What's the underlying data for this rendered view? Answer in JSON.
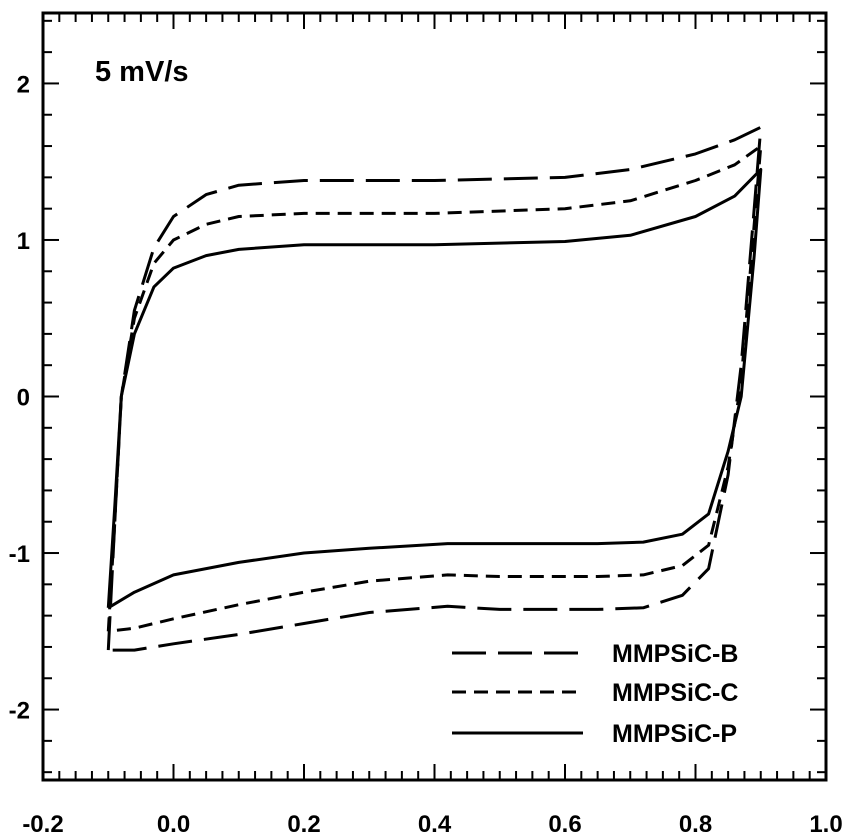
{
  "chart_data": {
    "type": "line",
    "title": "",
    "xlabel": "",
    "ylabel": "",
    "annotation": "5 mV/s",
    "xlim": [
      -0.2,
      1.0
    ],
    "ylim": [
      -2.45,
      2.45
    ],
    "xticks": [
      -0.2,
      0.0,
      0.2,
      0.4,
      0.6,
      0.8,
      1.0
    ],
    "xtick_labels": [
      "-0.2",
      "0.0",
      "0.2",
      "0.4",
      "0.6",
      "0.8",
      "1.0"
    ],
    "yticks": [
      -2,
      -1,
      0,
      1,
      2
    ],
    "ytick_labels": [
      "-2",
      "-1",
      "0",
      "1",
      "2"
    ],
    "grid": false,
    "legend_position": "bottom-right",
    "series": [
      {
        "name": "MMPSiC-B",
        "line_style": "long-dash",
        "color": "#000000",
        "forward": [
          [
            -0.1,
            -1.62
          ],
          [
            -0.09,
            -0.8
          ],
          [
            -0.08,
            0.0
          ],
          [
            -0.06,
            0.55
          ],
          [
            -0.03,
            0.95
          ],
          [
            0.0,
            1.15
          ],
          [
            0.05,
            1.29
          ],
          [
            0.1,
            1.35
          ],
          [
            0.2,
            1.38
          ],
          [
            0.4,
            1.38
          ],
          [
            0.6,
            1.4
          ],
          [
            0.7,
            1.45
          ],
          [
            0.8,
            1.55
          ],
          [
            0.86,
            1.64
          ],
          [
            0.9,
            1.72
          ]
        ],
        "reverse": [
          [
            0.9,
            1.72
          ],
          [
            0.89,
            1.2
          ],
          [
            0.87,
            0.2
          ],
          [
            0.85,
            -0.5
          ],
          [
            0.82,
            -1.1
          ],
          [
            0.78,
            -1.27
          ],
          [
            0.72,
            -1.35
          ],
          [
            0.65,
            -1.36
          ],
          [
            0.5,
            -1.36
          ],
          [
            0.42,
            -1.34
          ],
          [
            0.3,
            -1.38
          ],
          [
            0.2,
            -1.45
          ],
          [
            0.1,
            -1.52
          ],
          [
            0.0,
            -1.58
          ],
          [
            -0.06,
            -1.62
          ],
          [
            -0.1,
            -1.62
          ]
        ]
      },
      {
        "name": "MMPSiC-C",
        "line_style": "short-dash",
        "color": "#000000",
        "forward": [
          [
            -0.1,
            -1.5
          ],
          [
            -0.09,
            -0.8
          ],
          [
            -0.08,
            0.0
          ],
          [
            -0.06,
            0.5
          ],
          [
            -0.03,
            0.85
          ],
          [
            0.0,
            1.0
          ],
          [
            0.05,
            1.1
          ],
          [
            0.1,
            1.15
          ],
          [
            0.2,
            1.17
          ],
          [
            0.4,
            1.17
          ],
          [
            0.6,
            1.2
          ],
          [
            0.7,
            1.25
          ],
          [
            0.8,
            1.38
          ],
          [
            0.86,
            1.48
          ],
          [
            0.9,
            1.6
          ]
        ],
        "reverse": [
          [
            0.9,
            1.6
          ],
          [
            0.89,
            1.1
          ],
          [
            0.87,
            0.1
          ],
          [
            0.85,
            -0.45
          ],
          [
            0.82,
            -0.95
          ],
          [
            0.78,
            -1.08
          ],
          [
            0.72,
            -1.14
          ],
          [
            0.65,
            -1.15
          ],
          [
            0.5,
            -1.15
          ],
          [
            0.42,
            -1.14
          ],
          [
            0.3,
            -1.18
          ],
          [
            0.2,
            -1.25
          ],
          [
            0.1,
            -1.33
          ],
          [
            0.0,
            -1.42
          ],
          [
            -0.06,
            -1.48
          ],
          [
            -0.1,
            -1.5
          ]
        ]
      },
      {
        "name": "MMPSiC-P",
        "line_style": "solid",
        "color": "#000000",
        "forward": [
          [
            -0.1,
            -1.35
          ],
          [
            -0.09,
            -0.7
          ],
          [
            -0.08,
            0.0
          ],
          [
            -0.06,
            0.4
          ],
          [
            -0.03,
            0.7
          ],
          [
            0.0,
            0.82
          ],
          [
            0.05,
            0.9
          ],
          [
            0.1,
            0.94
          ],
          [
            0.2,
            0.97
          ],
          [
            0.4,
            0.97
          ],
          [
            0.6,
            0.99
          ],
          [
            0.7,
            1.03
          ],
          [
            0.8,
            1.15
          ],
          [
            0.86,
            1.28
          ],
          [
            0.9,
            1.45
          ]
        ],
        "reverse": [
          [
            0.9,
            1.45
          ],
          [
            0.89,
            0.9
          ],
          [
            0.87,
            0.0
          ],
          [
            0.85,
            -0.35
          ],
          [
            0.82,
            -0.75
          ],
          [
            0.78,
            -0.88
          ],
          [
            0.72,
            -0.93
          ],
          [
            0.65,
            -0.94
          ],
          [
            0.5,
            -0.94
          ],
          [
            0.42,
            -0.94
          ],
          [
            0.3,
            -0.97
          ],
          [
            0.2,
            -1.0
          ],
          [
            0.1,
            -1.06
          ],
          [
            0.0,
            -1.14
          ],
          [
            -0.06,
            -1.25
          ],
          [
            -0.1,
            -1.35
          ]
        ]
      }
    ]
  }
}
